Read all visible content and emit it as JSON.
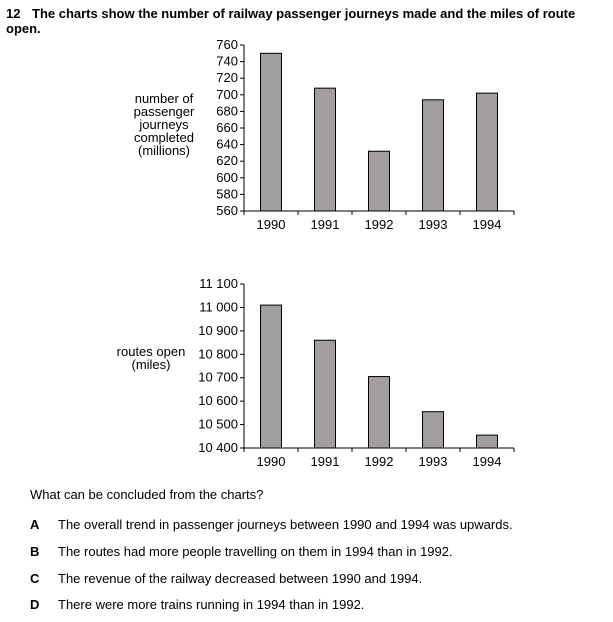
{
  "question": {
    "number": "12",
    "text": "The charts show the number of railway passenger journeys made and the miles of route open."
  },
  "chart_data": [
    {
      "type": "bar",
      "categories": [
        "1990",
        "1991",
        "1992",
        "1993",
        "1994"
      ],
      "values": [
        750,
        708,
        632,
        694,
        702
      ],
      "ylabel": [
        "number of",
        "passenger",
        "journeys",
        "completed",
        "(millions)"
      ],
      "ylim": [
        560,
        760
      ],
      "yticks": [
        560,
        580,
        600,
        620,
        640,
        660,
        680,
        700,
        720,
        740,
        760
      ],
      "yticklabels": [
        "560",
        "580",
        "600",
        "620",
        "640",
        "660",
        "680",
        "700",
        "720",
        "740",
        "760"
      ],
      "bar_color": "#a29e9e",
      "grid": false
    },
    {
      "type": "bar",
      "categories": [
        "1990",
        "1991",
        "1992",
        "1993",
        "1994"
      ],
      "values": [
        11010,
        10860,
        10705,
        10555,
        10455
      ],
      "ylabel": [
        "routes open",
        "(miles)"
      ],
      "ylim": [
        10400,
        11100
      ],
      "yticks": [
        10400,
        10500,
        10600,
        10700,
        10800,
        10900,
        11000,
        11100
      ],
      "yticklabels": [
        "10 400",
        "10 500",
        "10 600",
        "10 700",
        "10 800",
        "10 900",
        "11 000",
        "11 100"
      ],
      "bar_color": "#a29e9e",
      "grid": false
    }
  ],
  "prompt": "What can be concluded from the charts?",
  "options": [
    {
      "letter": "A",
      "text": "The overall trend in passenger journeys between 1990 and 1994 was upwards."
    },
    {
      "letter": "B",
      "text": "The routes had more people travelling on them in 1994 than in 1992."
    },
    {
      "letter": "C",
      "text": "The revenue of the railway decreased between 1990 and 1994."
    },
    {
      "letter": "D",
      "text": "There were more trains running in 1994 than in 1992."
    }
  ]
}
